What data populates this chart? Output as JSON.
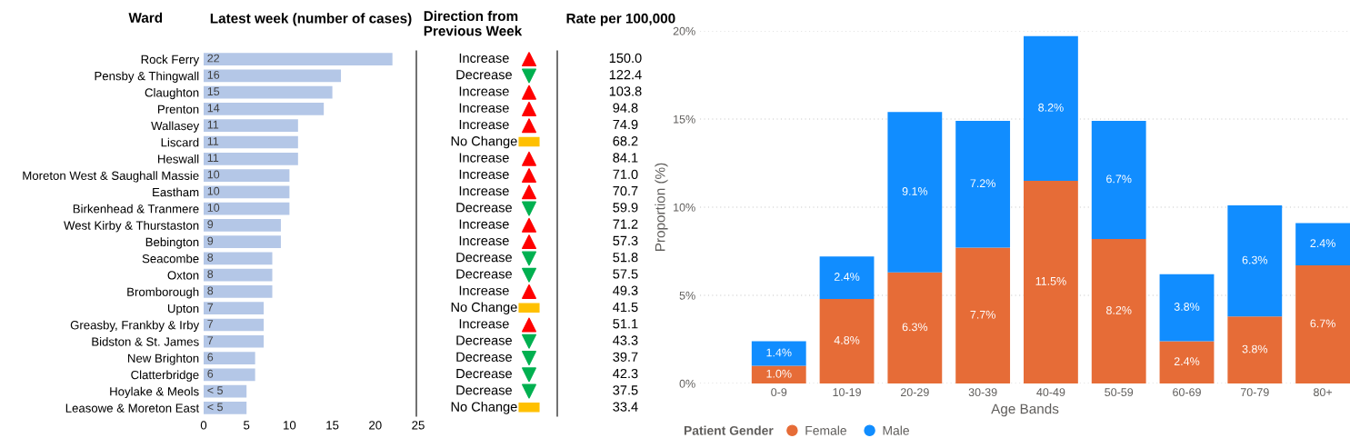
{
  "chart_data": [
    {
      "type": "bar",
      "orientation": "horizontal",
      "title": "Latest week (number of cases)",
      "ylabel": "Ward",
      "categories": [
        "Rock Ferry",
        "Pensby & Thingwall",
        "Claughton",
        "Prenton",
        "Wallasey",
        "Liscard",
        "Heswall",
        "Moreton West & Saughall Massie",
        "Eastham",
        "Birkenhead & Tranmere",
        "West Kirby & Thurstaston",
        "Bebington",
        "Seacombe",
        "Oxton",
        "Bromborough",
        "Upton",
        "Greasby, Frankby & Irby",
        "Bidston & St. James",
        "New Brighton",
        "Clatterbridge",
        "Hoylake & Meols",
        "Leasowe & Moreton East"
      ],
      "values": [
        22,
        16,
        15,
        14,
        11,
        11,
        11,
        10,
        10,
        10,
        9,
        9,
        8,
        8,
        8,
        7,
        7,
        7,
        6,
        6,
        5,
        5
      ],
      "value_labels": [
        "22",
        "16",
        "15",
        "14",
        "11",
        "11",
        "11",
        "10",
        "10",
        "10",
        "9",
        "9",
        "8",
        "8",
        "8",
        "7",
        "7",
        "7",
        "6",
        "6",
        "< 5",
        "< 5"
      ],
      "color": "#b4c7e7",
      "xlim": [
        0,
        25
      ],
      "xticks": [
        0,
        5,
        10,
        15,
        20,
        25
      ],
      "grid": false,
      "legend": false
    },
    {
      "type": "other",
      "title": "Direction from\nPrevious Week",
      "categories": [
        "Increase",
        "Decrease",
        "Increase",
        "Increase",
        "Increase",
        "No Change",
        "Increase",
        "Increase",
        "Increase",
        "Decrease",
        "Increase",
        "Increase",
        "Decrease",
        "Decrease",
        "Increase",
        "No Change",
        "Increase",
        "Decrease",
        "Decrease",
        "Decrease",
        "Decrease",
        "No Change"
      ],
      "colors": [
        "#ff0000",
        "#00b050",
        "#ff0000",
        "#ff0000",
        "#ff0000",
        "#ffc000",
        "#ff0000",
        "#ff0000",
        "#ff0000",
        "#00b050",
        "#ff0000",
        "#ff0000",
        "#00b050",
        "#00b050",
        "#ff0000",
        "#ffc000",
        "#ff0000",
        "#00b050",
        "#00b050",
        "#00b050",
        "#00b050",
        "#ffc000"
      ]
    },
    {
      "type": "other",
      "title": "Rate per 100,000",
      "value_labels": [
        "150.0",
        "122.4",
        "103.8",
        "94.8",
        "74.9",
        "68.2",
        "84.1",
        "71.0",
        "70.7",
        "59.9",
        "71.2",
        "57.3",
        "51.8",
        "57.5",
        "49.3",
        "41.5",
        "51.1",
        "43.3",
        "39.7",
        "42.3",
        "37.5",
        "33.4"
      ]
    },
    {
      "type": "bar",
      "stacked": true,
      "xlabel": "Age Bands",
      "ylabel": "Proportion (%)",
      "legend_title": "Patient Gender",
      "legend": "bottom left",
      "grid": "y",
      "categories": [
        "0-9",
        "10-19",
        "20-29",
        "30-39",
        "40-49",
        "50-59",
        "60-69",
        "70-79",
        "80+"
      ],
      "ylim": [
        0,
        20
      ],
      "yticks": [
        {
          "value": 0,
          "label": "0%"
        },
        {
          "value": 5,
          "label": "5%"
        },
        {
          "value": 10,
          "label": "10%"
        },
        {
          "value": 15,
          "label": "15%"
        },
        {
          "value": 20,
          "label": "20%"
        }
      ],
      "series": [
        {
          "name": "Female",
          "color": "#e66c37",
          "values": [
            1.0,
            4.8,
            6.3,
            7.7,
            11.5,
            8.2,
            2.4,
            3.8,
            6.7
          ],
          "value_labels": [
            "1.0%",
            "4.8%",
            "6.3%",
            "7.7%",
            "11.5%",
            "8.2%",
            "2.4%",
            "3.8%",
            "6.7%"
          ]
        },
        {
          "name": "Male",
          "color": "#118dff",
          "values": [
            1.4,
            2.4,
            9.1,
            7.2,
            8.2,
            6.7,
            3.8,
            6.3,
            2.4
          ],
          "value_labels": [
            "1.4%",
            "2.4%",
            "9.1%",
            "7.2%",
            "8.2%",
            "6.7%",
            "3.8%",
            "6.3%",
            "2.4%"
          ]
        }
      ]
    }
  ]
}
